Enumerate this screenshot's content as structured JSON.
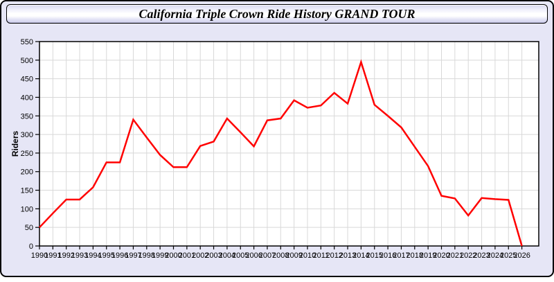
{
  "window": {
    "title": "California Triple Crown Ride History GRAND TOUR"
  },
  "colors": {
    "page_background": "#e6e6f6",
    "plot_background": "#ffffff",
    "gridline": "#d8d8d8",
    "axis": "#000000",
    "line": "#ff0000",
    "title_text": "#000000"
  },
  "chart_data": {
    "type": "line",
    "title": "California Triple Crown Ride History GRAND TOUR",
    "xlabel": "",
    "ylabel": "Riders",
    "x": [
      1990,
      1991,
      1992,
      1993,
      1994,
      1995,
      1996,
      1997,
      1998,
      1999,
      2000,
      2001,
      2002,
      2003,
      2004,
      2005,
      2006,
      2007,
      2008,
      2009,
      2010,
      2011,
      2012,
      2013,
      2014,
      2015,
      2016,
      2017,
      2018,
      2019,
      2020,
      2021,
      2022,
      2023,
      2024,
      2025,
      2026
    ],
    "series": [
      {
        "name": "Riders",
        "color": "#ff0000",
        "values": [
          50,
          88,
          125,
          125,
          158,
          225,
          225,
          340,
          292,
          245,
          212,
          212,
          269,
          281,
          343,
          306,
          268,
          338,
          343,
          392,
          372,
          378,
          412,
          383,
          495,
          380,
          350,
          319,
          267,
          215,
          135,
          128,
          82,
          129,
          126,
          124,
          0
        ]
      }
    ],
    "ylim": [
      0,
      550
    ],
    "ytick_step": 50,
    "grid": true,
    "legend_position": "none"
  }
}
